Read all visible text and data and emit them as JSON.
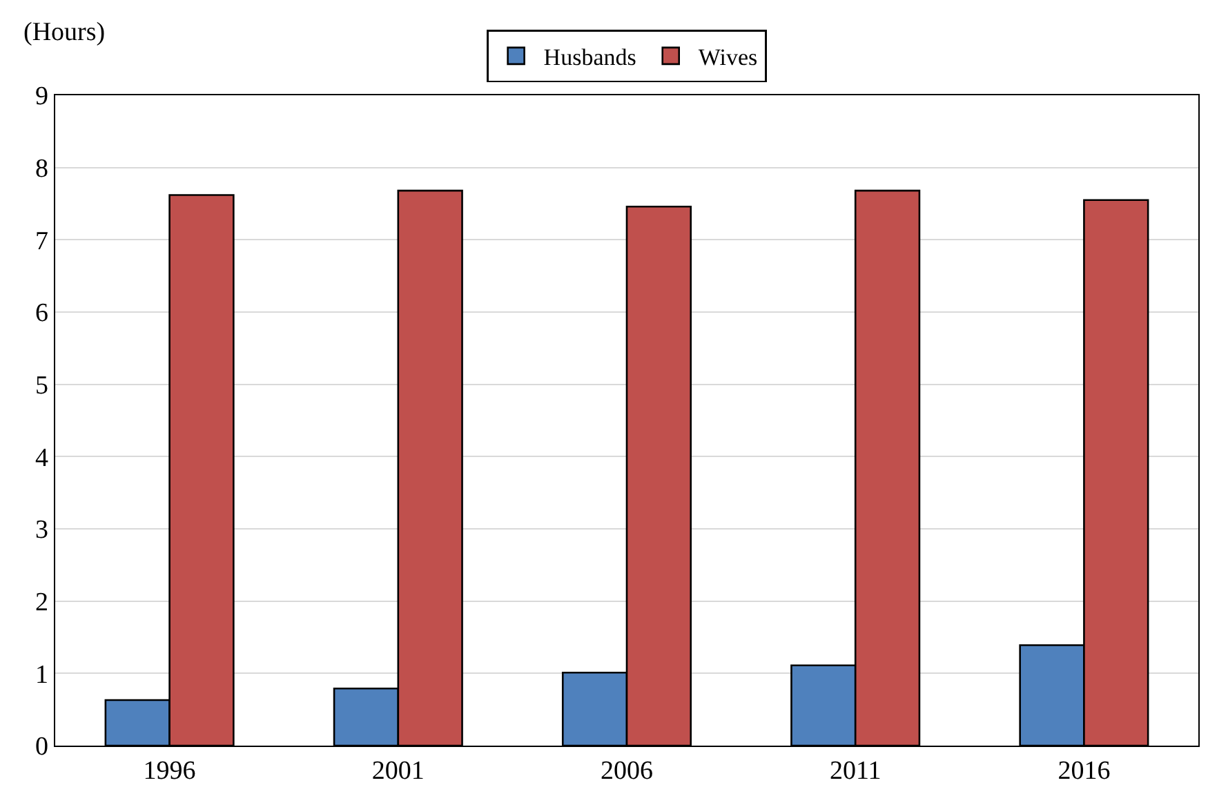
{
  "chart_data": {
    "type": "bar",
    "ylabel": "(Hours)",
    "categories": [
      "1996",
      "2001",
      "2006",
      "2011",
      "2016"
    ],
    "series": [
      {
        "name": "Husbands",
        "color": "#4f81bd",
        "values": [
          0.63,
          0.79,
          1.01,
          1.11,
          1.39
        ]
      },
      {
        "name": "Wives",
        "color": "#c0504d",
        "values": [
          7.62,
          7.68,
          7.46,
          7.68,
          7.55
        ]
      }
    ],
    "ylim": [
      0,
      9
    ],
    "yticks": [
      0,
      1,
      2,
      3,
      4,
      5,
      6,
      7,
      8,
      9
    ],
    "grid": "y",
    "legend": "top"
  }
}
